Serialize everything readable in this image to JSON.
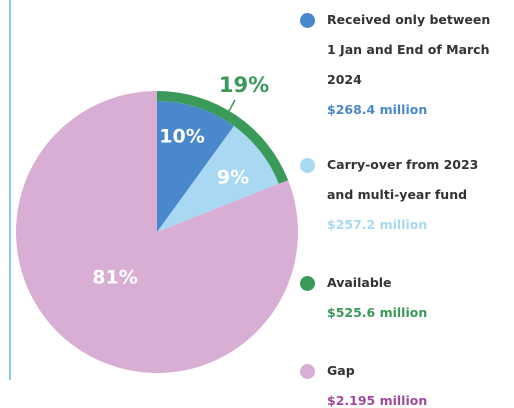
{
  "chart_data": {
    "type": "pie",
    "slices": [
      {
        "name": "Received only between 1 Jan and End of March 2024",
        "value": 10,
        "value_label": "10%",
        "color": "#4a88cc",
        "amount": "$268.4 million",
        "amount_color": "#4a88cc"
      },
      {
        "name": "Carry-over from 2023 and multi-year fund",
        "value": 9,
        "value_label": "9%",
        "color": "#a9d8f2",
        "amount": "$257.2 million",
        "amount_color": "#a9d8f2"
      },
      {
        "name": "Gap",
        "value": 81,
        "value_label": "81%",
        "color": "#d9aed4",
        "amount": "$2.195 million",
        "amount_color": "#a04c9e"
      }
    ],
    "ring": {
      "name": "Available",
      "value": 19,
      "value_label": "19%",
      "color": "#3a9a5a",
      "amount": "$525.6 million",
      "amount_color": "#3a9a5a"
    }
  }
}
